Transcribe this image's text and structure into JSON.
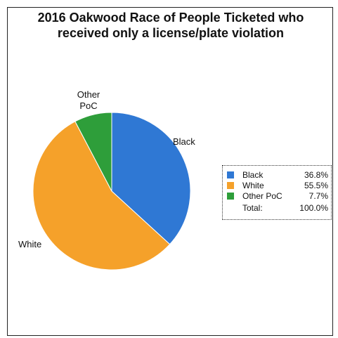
{
  "chart_data": {
    "type": "pie",
    "title": [
      "2016 Oakwood Race of People Ticketed who",
      "received only a license/plate violation"
    ],
    "categories": [
      "Black",
      "White",
      "Other PoC"
    ],
    "values": [
      36.8,
      55.5,
      7.7
    ],
    "value_labels": [
      "36.8%",
      "55.5%",
      "7.7%"
    ],
    "colors": [
      "#2f78d4",
      "#f5a12a",
      "#2e9e3a"
    ],
    "slice_labels": [
      "Black",
      "White",
      "Other PoC"
    ],
    "legend": {
      "placement": "right",
      "total_label": "Total:",
      "total_value": "100.0%"
    }
  }
}
